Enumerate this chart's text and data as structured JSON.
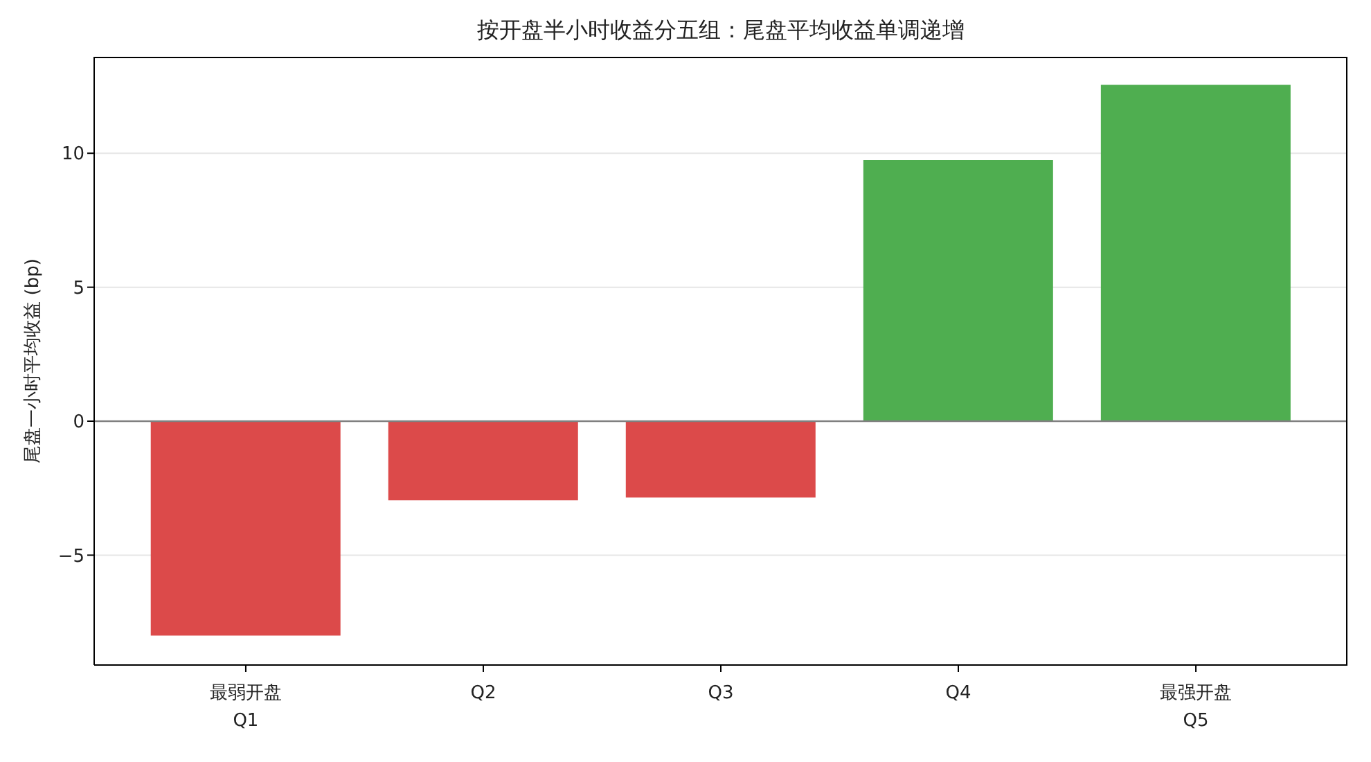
{
  "chart_data": {
    "type": "bar",
    "title": "按开盘半小时收益分五组：尾盘平均收益单调递增",
    "ylabel": "尾盘一小时平均收益 (bp)",
    "categories": [
      "最弱开盘\nQ1",
      "Q2",
      "Q3",
      "Q4",
      "最强开盘\nQ5"
    ],
    "values": [
      -8.0,
      -2.95,
      -2.85,
      9.75,
      12.55
    ],
    "colors": [
      "#dc4a4a",
      "#dc4a4a",
      "#dc4a4a",
      "#4fae50",
      "#4fae50"
    ],
    "ylim": [
      -9.1,
      13.6
    ],
    "yticks": [
      {
        "value": -5,
        "label": "−5"
      },
      0,
      5,
      10
    ],
    "grid": "y",
    "ref_lines": [
      {
        "axis": "y",
        "value": 0,
        "color": "#808080"
      }
    ]
  }
}
